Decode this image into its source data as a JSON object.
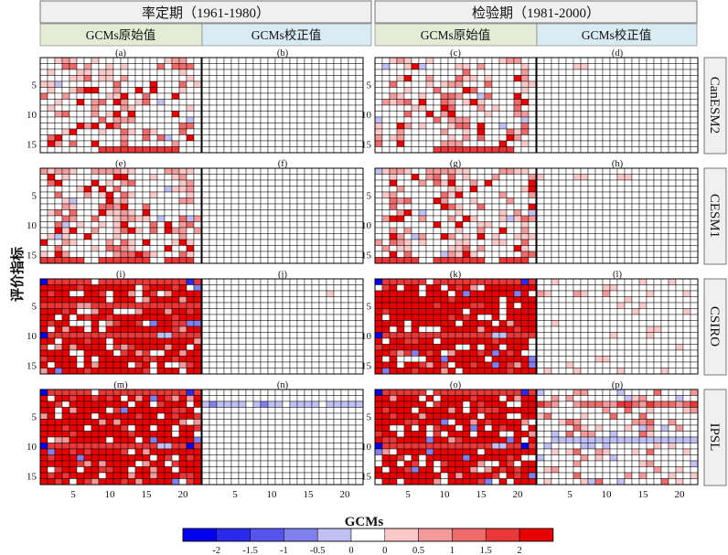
{
  "header": {
    "periods": [
      "率定期（1961-1980）",
      "检验期（1981-2000）"
    ],
    "columns": [
      "GCMs原始值",
      "GCMs校正值",
      "GCMs原始值",
      "GCMs校正值"
    ]
  },
  "models": [
    "CanESM2",
    "CESM1",
    "CSIRO",
    "IPSL"
  ],
  "panel_labels": [
    "(a)",
    "(b)",
    "(c)",
    "(d)",
    "(e)",
    "(f)",
    "(g)",
    "(h)",
    "(i)",
    "(j)",
    "(k)",
    "(l)",
    "(m)",
    "(n)",
    "(o)",
    "(p)"
  ],
  "axes": {
    "xlabel": "GCMs",
    "ylabel": "评价指标",
    "xticks": [
      5,
      10,
      15,
      20
    ],
    "yticks": [
      5,
      10,
      15
    ],
    "ncols": 22,
    "nrows": 16
  },
  "colorbar": {
    "colors": [
      "#0000ee",
      "#2a2aee",
      "#5555ee",
      "#8080ee",
      "#c0c0f4",
      "#ffffff",
      "#fcc8c8",
      "#f49a9a",
      "#ef6a6a",
      "#ea3838",
      "#e80000"
    ],
    "labels": [
      "-2",
      "-1.5",
      "-1",
      "-0.5",
      "0",
      "0",
      "0.5",
      "1",
      "1.5",
      "2"
    ]
  },
  "chart_data": {
    "type": "heatmap",
    "description_of_values": "sample of visible cell color levels: level index into colorbar.colors (0=-2 ... 5=0 ... 10=2); grids are 16 rows (indicators) x 22 columns (GCMs)",
    "panels": [
      {
        "label": "(a)",
        "model": "CanESM2",
        "period": "率定期（1961-1980）",
        "type": "GCMs原始值",
        "rows": {
          "1": "5567655655555555567755",
          "3": "5655566566555555555655",
          "9": "5655555755576555555565",
          "11": "5555555585777555555545",
          "16": "5555555599999999999555"
        }
      },
      {
        "label": "(b)",
        "model": "CanESM2",
        "period": "率定期（1961-1980）",
        "type": "GCMs校正值",
        "rows": {}
      },
      {
        "label": "(c)",
        "model": "CanESM2",
        "period": "检验期（1981-2000）",
        "type": "GCMs原始值",
        "rows": {
          "1": "5567655655555555567755",
          "11": "4555555585777555555545",
          "16": "5555555599999999999555"
        }
      },
      {
        "label": "(d)",
        "model": "CanESM2",
        "period": "检验期（1981-2000）",
        "type": "GCMs校正值",
        "rows": {
          "2": "5555566555555555555555"
        }
      },
      {
        "label": "(e)",
        "model": "CESM1",
        "period": "率定期（1961-1980）",
        "type": "GCMs原始值",
        "rows": {
          "1": "7677655777766555577665",
          "16": "9999995599999995599995"
        }
      },
      {
        "label": "(f)",
        "model": "CESM1",
        "period": "率定期（1961-1980）",
        "type": "GCMs校正值",
        "rows": {}
      },
      {
        "label": "(g)",
        "model": "CESM1",
        "period": "检验期（1981-2000）",
        "type": "GCMs原始值",
        "rows": {
          "1": "4677655777766555577665",
          "16": "9999995599999995599995"
        }
      },
      {
        "label": "(h)",
        "model": "CESM1",
        "period": "检验期（1981-2000）",
        "type": "GCMs校正值",
        "rows": {
          "2": "6555566555566555555555"
        }
      },
      {
        "label": "(i)",
        "model": "CSIRO",
        "period": "率定期（1961-1980）",
        "type": "GCMs原始值",
        "rows": {
          "1": "0999999599999999999919",
          "5": "9999977999999999999999",
          "10": "0999999999999999449999"
        }
      },
      {
        "label": "(j)",
        "model": "CSIRO",
        "period": "率定期（1961-1980）",
        "type": "GCMs校正值",
        "rows": {
          "3": "5555555555555555565555"
        }
      },
      {
        "label": "(k)",
        "model": "CSIRO",
        "period": "检验期（1981-2000）",
        "type": "GCMs原始值",
        "rows": {
          "1": "0999999599999999999919",
          "10": "0999999999999999449999"
        }
      },
      {
        "label": "(l)",
        "model": "CSIRO",
        "period": "检验期（1981-2000）",
        "type": "GCMs校正值",
        "rows": {
          "3": "7655576557555556555565"
        }
      },
      {
        "label": "(m)",
        "model": "IPSL",
        "period": "率定期（1961-1980）",
        "type": "GCMs原始值",
        "rows": {
          "1": "0999999599999999999919",
          "10": "0999999999999999449909"
        }
      },
      {
        "label": "(n)",
        "model": "IPSL",
        "period": "率定期（1961-1980）",
        "type": "GCMs校正值",
        "rows": {
          "3": "4344445434454444544444"
        }
      },
      {
        "label": "(o)",
        "model": "IPSL",
        "period": "检验期（1981-2000）",
        "type": "GCMs原始值",
        "rows": {
          "1": "0999999599999999999919",
          "10": "0999999999999999449909"
        }
      },
      {
        "label": "(p)",
        "model": "IPSL",
        "period": "检验期（1981-2000）",
        "type": "GCMs校正值",
        "rows": {
          "3": "9875578887799879888789",
          "9": "5544444444444444444444"
        }
      }
    ]
  }
}
